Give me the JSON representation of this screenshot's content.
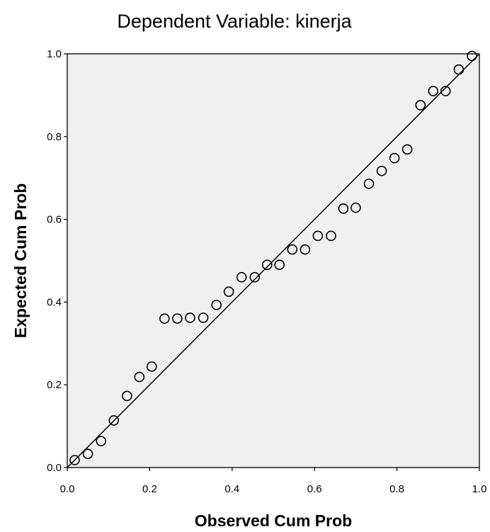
{
  "chart_data": {
    "type": "scatter",
    "title": "Dependent Variable: kinerja",
    "xlabel": "Observed Cum Prob",
    "ylabel": "Expected Cum Prob",
    "xlim": [
      0,
      1
    ],
    "ylim": [
      0,
      1
    ],
    "x_ticks": [
      "0.0",
      "0.2",
      "0.4",
      "0.6",
      "0.8",
      "1.0"
    ],
    "y_ticks": [
      "0.0",
      "0.2",
      "0.4",
      "0.6",
      "0.8",
      "1.0"
    ],
    "reference_line": {
      "from": [
        0,
        0
      ],
      "to": [
        1,
        1
      ]
    },
    "grid": false,
    "plot_background": "#f0f0f0",
    "series": [
      {
        "x": [
          0.018,
          0.05,
          0.082,
          0.113,
          0.145,
          0.175,
          0.205,
          0.236,
          0.267,
          0.298,
          0.33,
          0.362,
          0.392,
          0.423,
          0.455,
          0.485,
          0.515,
          0.546,
          0.577,
          0.608,
          0.64,
          0.67,
          0.7,
          0.732,
          0.763,
          0.794,
          0.825,
          0.857,
          0.888,
          0.918,
          0.95,
          0.982
        ],
        "y": [
          0.018,
          0.033,
          0.064,
          0.114,
          0.173,
          0.219,
          0.244,
          0.36,
          0.36,
          0.362,
          0.362,
          0.393,
          0.425,
          0.46,
          0.46,
          0.49,
          0.49,
          0.527,
          0.527,
          0.56,
          0.56,
          0.626,
          0.628,
          0.686,
          0.717,
          0.748,
          0.769,
          0.876,
          0.91,
          0.91,
          0.962,
          0.995
        ]
      }
    ]
  }
}
